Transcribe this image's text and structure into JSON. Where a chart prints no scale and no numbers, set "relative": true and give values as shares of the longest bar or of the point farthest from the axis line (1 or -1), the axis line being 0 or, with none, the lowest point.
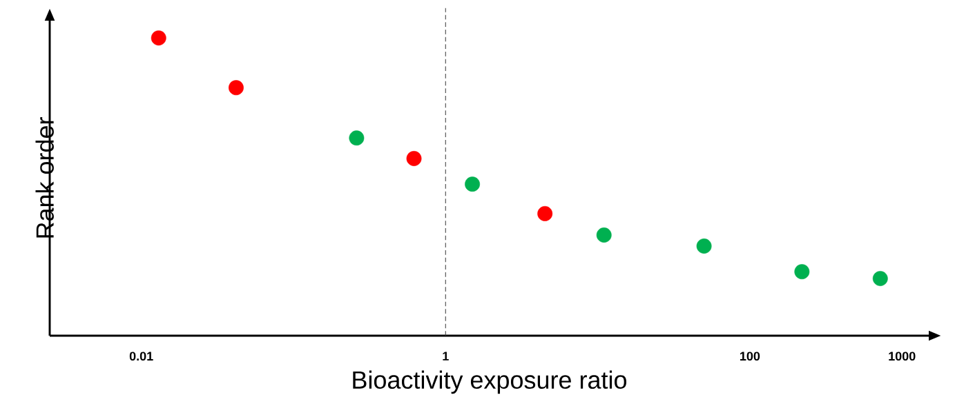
{
  "chart_data": {
    "type": "scatter",
    "xlabel": "Bioactivity exposure ratio",
    "ylabel": "Rank order",
    "relative": true,
    "log": "x",
    "xlim": [
      0.0025,
      1500
    ],
    "xticks": [
      0.01,
      1,
      100,
      1000
    ],
    "series": [
      {
        "color": "#ff0000",
        "x": [
          0.013,
          0.042,
          0.62,
          4.5
        ],
        "values": [
          1,
          0.833,
          0.595,
          0.41
        ]
      },
      {
        "color": "#00b050",
        "x": [
          0.26,
          1.5,
          11,
          50,
          220,
          720
        ],
        "values": [
          0.664,
          0.509,
          0.338,
          0.301,
          0.215,
          0.192
        ]
      }
    ],
    "ref_lines": [
      {
        "axis": "x",
        "value": 1,
        "line_style": "dashed",
        "color": "#404040"
      }
    ]
  }
}
